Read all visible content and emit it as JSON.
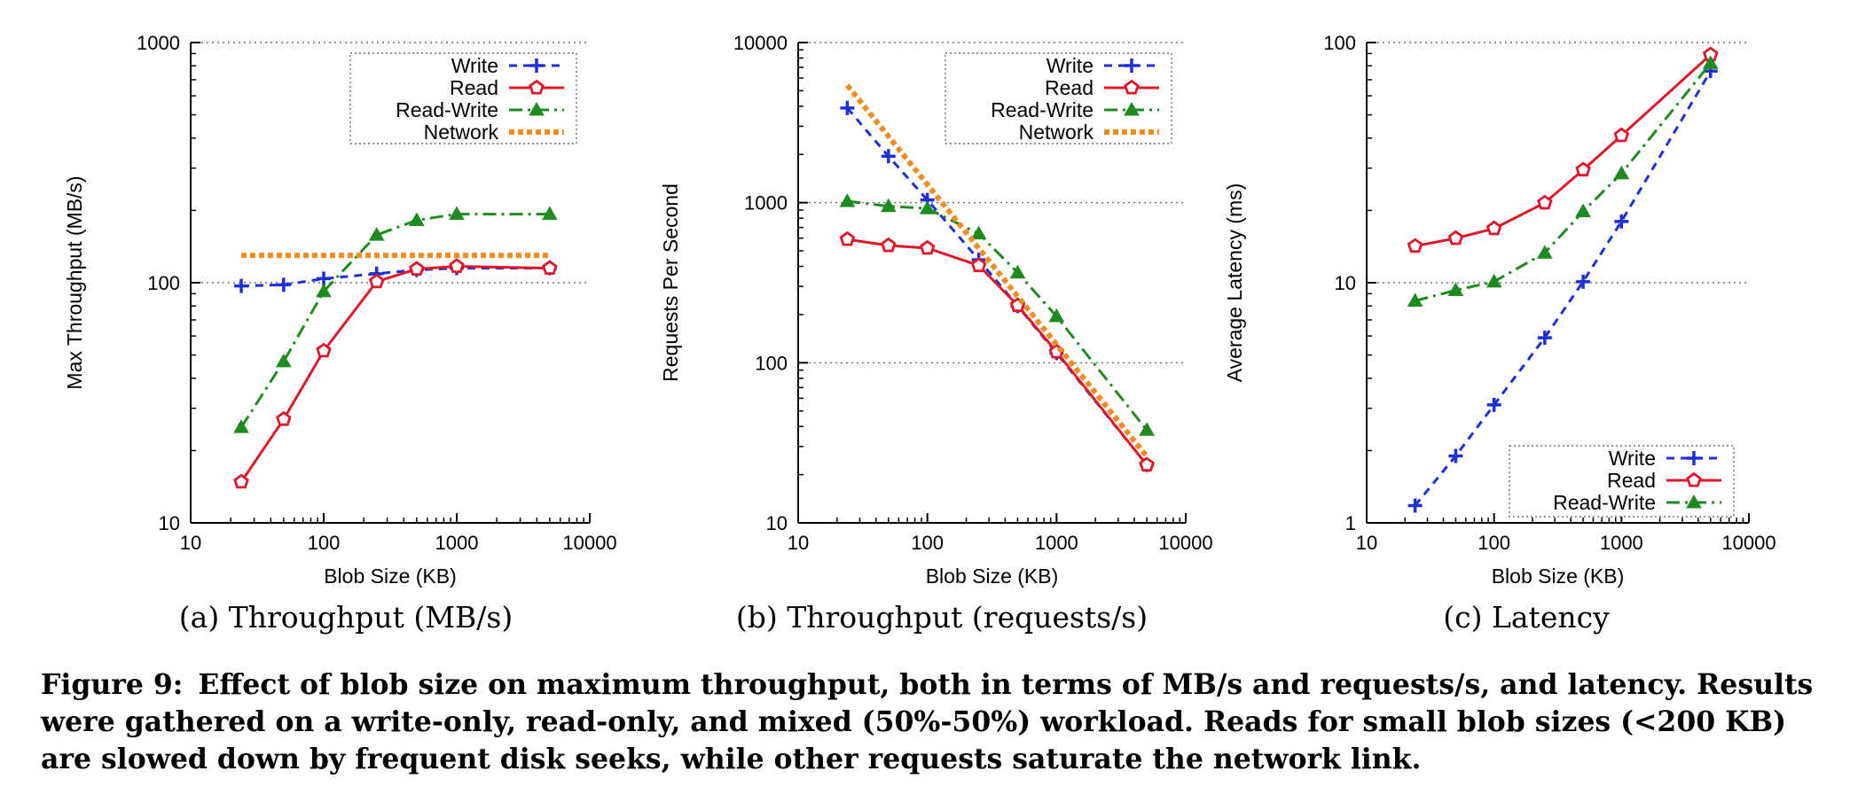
{
  "colors": {
    "write": "#1f2fd6",
    "read": "#e0162b",
    "read_write": "#1f8a1f",
    "network": "#f28c1f"
  },
  "chart_data": [
    {
      "type": "line",
      "subcaption": "(a) Throughput (MB/s)",
      "xlabel": "Blob Size (KB)",
      "ylabel": "Max Throughput (MB/s)",
      "xscale": "log",
      "yscale": "log",
      "xlim": [
        10,
        10000
      ],
      "ylim": [
        10,
        1000
      ],
      "xticks": [
        10,
        100,
        1000,
        10000
      ],
      "xtick_labels": [
        "10",
        "100",
        "1000",
        "10000"
      ],
      "yticks": [
        10,
        100,
        1000
      ],
      "ytick_labels": [
        "10",
        "100",
        "1000"
      ],
      "grid": "horizontal dotted",
      "legend_position": "top-right",
      "series": [
        {
          "name": "Write",
          "key": "write",
          "style": "dashed",
          "marker": "plus",
          "x": [
            24,
            50,
            100,
            250,
            500,
            1000,
            5000
          ],
          "y": [
            97,
            98,
            104,
            109,
            113,
            115,
            115
          ]
        },
        {
          "name": "Read",
          "key": "read",
          "style": "solid",
          "marker": "pentagon",
          "x": [
            24,
            50,
            100,
            250,
            500,
            1000,
            5000
          ],
          "y": [
            14.8,
            27,
            52,
            101,
            114,
            117,
            115
          ]
        },
        {
          "name": "Read-Write",
          "key": "read_write",
          "style": "dashdot",
          "marker": "triangle",
          "x": [
            24,
            50,
            100,
            250,
            500,
            1000,
            5000
          ],
          "y": [
            25,
            47,
            92,
            158,
            182,
            193,
            193
          ]
        },
        {
          "name": "Network",
          "key": "network",
          "style": "dotted",
          "marker": "none",
          "x": [
            24,
            5000
          ],
          "y": [
            130,
            130
          ]
        }
      ]
    },
    {
      "type": "line",
      "subcaption": "(b) Throughput (requests/s)",
      "xlabel": "Blob Size (KB)",
      "ylabel": "Requests Per Second",
      "xscale": "log",
      "yscale": "log",
      "xlim": [
        10,
        10000
      ],
      "ylim": [
        10,
        10000
      ],
      "xticks": [
        10,
        100,
        1000,
        10000
      ],
      "xtick_labels": [
        "10",
        "100",
        "1000",
        "10000"
      ],
      "yticks": [
        10,
        100,
        1000,
        10000
      ],
      "ytick_labels": [
        "10",
        "100",
        "1000",
        "10000"
      ],
      "grid": "horizontal dotted",
      "legend_position": "top-right",
      "series": [
        {
          "name": "Write",
          "key": "write",
          "style": "dashed",
          "marker": "plus",
          "x": [
            24,
            50,
            100,
            250,
            500,
            1000,
            5000
          ],
          "y": [
            3900,
            1950,
            1040,
            440,
            226,
            115,
            23
          ]
        },
        {
          "name": "Read",
          "key": "read",
          "style": "solid",
          "marker": "pentagon",
          "x": [
            24,
            50,
            100,
            250,
            500,
            1000,
            5000
          ],
          "y": [
            590,
            540,
            520,
            405,
            228,
            117,
            23
          ]
        },
        {
          "name": "Read-Write",
          "key": "read_write",
          "style": "dashdot",
          "marker": "triangle",
          "x": [
            24,
            50,
            100,
            250,
            500,
            1000,
            5000
          ],
          "y": [
            1020,
            950,
            920,
            640,
            365,
            195,
            38
          ]
        },
        {
          "name": "Network",
          "key": "network",
          "style": "dotted",
          "marker": "none",
          "x": [
            24,
            5000
          ],
          "y": [
            5400,
            26
          ]
        }
      ]
    },
    {
      "type": "line",
      "subcaption": "(c) Latency",
      "xlabel": "Blob Size (KB)",
      "ylabel": "Average Latency (ms)",
      "xscale": "log",
      "yscale": "log",
      "xlim": [
        10,
        10000
      ],
      "ylim": [
        1,
        100
      ],
      "xticks": [
        10,
        100,
        1000,
        10000
      ],
      "xtick_labels": [
        "10",
        "100",
        "1000",
        "10000"
      ],
      "yticks": [
        1,
        10,
        100
      ],
      "ytick_labels": [
        "1",
        "10",
        "100"
      ],
      "grid": "horizontal dotted",
      "legend_position": "bottom-right",
      "series": [
        {
          "name": "Write",
          "key": "write",
          "style": "dashed",
          "marker": "plus",
          "x": [
            24,
            50,
            100,
            250,
            500,
            1000,
            5000
          ],
          "y": [
            1.18,
            1.9,
            3.1,
            5.9,
            10.1,
            18,
            76
          ]
        },
        {
          "name": "Read",
          "key": "read",
          "style": "solid",
          "marker": "pentagon",
          "x": [
            24,
            50,
            100,
            250,
            500,
            1000,
            5000
          ],
          "y": [
            14.2,
            15.3,
            16.8,
            21.5,
            29.5,
            41,
            89
          ]
        },
        {
          "name": "Read-Write",
          "key": "read_write",
          "style": "dashdot",
          "marker": "triangle",
          "x": [
            24,
            50,
            100,
            250,
            500,
            1000,
            5000
          ],
          "y": [
            8.4,
            9.3,
            10.1,
            13.3,
            19.8,
            28.5,
            82
          ]
        }
      ]
    }
  ],
  "caption": {
    "label": "Figure 9:",
    "text": "Effect of blob size on maximum throughput, both in terms of MB/s and requests/s, and latency. Results were gathered on a write-only, read-only, and mixed (50%-50%) workload. Reads for small blob sizes (<200 KB) are slowed down by frequent disk seeks, while other requests saturate the network link."
  }
}
